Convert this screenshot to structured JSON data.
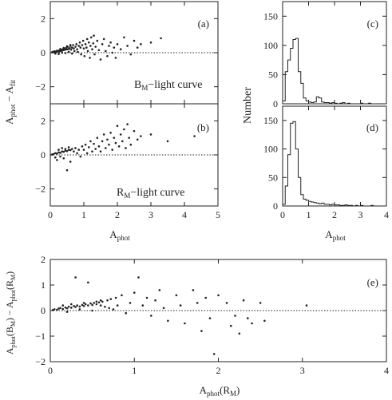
{
  "figure": {
    "background": "#ffffff",
    "ink": "#222222"
  },
  "chart_data": [
    {
      "id": "a",
      "type": "scatter",
      "panel_label": "(a)",
      "annotation_main": "B",
      "annotation_sub": "M",
      "annotation_rest": "−light curve",
      "ylabel": "A",
      "ylabel_sub": "phot",
      "ylabel_rest": " − A",
      "ylabel_sub2": "fit",
      "xlim": [
        0,
        5
      ],
      "ylim": [
        -3,
        3
      ],
      "xticks": [
        0,
        1,
        2,
        3,
        4,
        5
      ],
      "yticks": [
        -2,
        0,
        2
      ],
      "ytick_labels": [
        "−2",
        "0",
        "2"
      ],
      "reference_line": 0,
      "points": [
        [
          0.05,
          0.02
        ],
        [
          0.08,
          0.05
        ],
        [
          0.1,
          0.03
        ],
        [
          0.12,
          0.08
        ],
        [
          0.15,
          0.05
        ],
        [
          0.18,
          0.1
        ],
        [
          0.2,
          0.07
        ],
        [
          0.22,
          0.12
        ],
        [
          0.25,
          0.06
        ],
        [
          0.28,
          0.14
        ],
        [
          0.3,
          0.1
        ],
        [
          0.32,
          0.18
        ],
        [
          0.35,
          0.12
        ],
        [
          0.38,
          0.2
        ],
        [
          0.4,
          0.15
        ],
        [
          0.42,
          0.25
        ],
        [
          0.45,
          0.18
        ],
        [
          0.48,
          0.3
        ],
        [
          0.5,
          0.2
        ],
        [
          0.52,
          0.35
        ],
        [
          0.55,
          0.22
        ],
        [
          0.58,
          0.28
        ],
        [
          0.6,
          0.4
        ],
        [
          0.62,
          0.18
        ],
        [
          0.65,
          0.3
        ],
        [
          0.68,
          0.45
        ],
        [
          0.7,
          0.25
        ],
        [
          0.72,
          0.1
        ],
        [
          0.75,
          0.35
        ],
        [
          0.78,
          0.5
        ],
        [
          0.8,
          0.2
        ],
        [
          0.82,
          0.05
        ],
        [
          0.85,
          0.4
        ],
        [
          0.88,
          0.6
        ],
        [
          0.9,
          0.3
        ],
        [
          0.92,
          -0.1
        ],
        [
          0.95,
          0.45
        ],
        [
          0.98,
          0.7
        ],
        [
          1.0,
          0.25
        ],
        [
          1.02,
          -0.2
        ],
        [
          1.05,
          0.5
        ],
        [
          1.08,
          0.3
        ],
        [
          1.1,
          0.8
        ],
        [
          1.12,
          0.1
        ],
        [
          1.15,
          0.6
        ],
        [
          1.18,
          -0.3
        ],
        [
          1.2,
          0.4
        ],
        [
          1.22,
          0.9
        ],
        [
          1.25,
          0.2
        ],
        [
          1.28,
          0.55
        ],
        [
          1.3,
          1.0
        ],
        [
          1.32,
          -0.1
        ],
        [
          1.35,
          0.35
        ],
        [
          1.4,
          0.7
        ],
        [
          1.45,
          0.15
        ],
        [
          1.5,
          -0.4
        ],
        [
          1.55,
          0.5
        ],
        [
          1.6,
          0.8
        ],
        [
          1.65,
          0.1
        ],
        [
          1.7,
          -0.2
        ],
        [
          1.75,
          0.4
        ],
        [
          1.8,
          0.6
        ],
        [
          1.85,
          0.0
        ],
        [
          1.9,
          0.3
        ],
        [
          1.95,
          -0.3
        ],
        [
          2.0,
          0.5
        ],
        [
          2.1,
          0.2
        ],
        [
          2.2,
          0.9
        ],
        [
          2.3,
          0.4
        ],
        [
          2.4,
          -0.1
        ],
        [
          2.5,
          0.7
        ],
        [
          2.6,
          0.3
        ],
        [
          2.7,
          0.5
        ],
        [
          3.0,
          0.6
        ],
        [
          3.3,
          0.85
        ],
        [
          0.15,
          -0.05
        ],
        [
          0.25,
          -0.08
        ],
        [
          0.35,
          0.0
        ],
        [
          0.45,
          -0.02
        ],
        [
          0.55,
          0.05
        ],
        [
          0.65,
          -0.05
        ],
        [
          0.3,
          0.22
        ],
        [
          0.4,
          0.28
        ],
        [
          0.5,
          0.38
        ],
        [
          0.6,
          0.45
        ]
      ]
    },
    {
      "id": "b",
      "type": "scatter",
      "panel_label": "(b)",
      "annotation_main": "R",
      "annotation_sub": "M",
      "annotation_rest": "−light curve",
      "xlabel": "A",
      "xlabel_sub": "phot",
      "xlim": [
        0,
        5
      ],
      "ylim": [
        -3,
        3
      ],
      "xticks": [
        0,
        1,
        2,
        3,
        4,
        5
      ],
      "xtick_labels": [
        "0",
        "1",
        "2",
        "3",
        "4",
        "5"
      ],
      "yticks": [
        -2,
        0,
        2
      ],
      "ytick_labels": [
        "−2",
        "0",
        "2"
      ],
      "reference_line": 0,
      "points": [
        [
          0.05,
          0.02
        ],
        [
          0.1,
          0.05
        ],
        [
          0.15,
          0.1
        ],
        [
          0.2,
          0.08
        ],
        [
          0.25,
          0.15
        ],
        [
          0.3,
          0.12
        ],
        [
          0.35,
          0.2
        ],
        [
          0.4,
          0.18
        ],
        [
          0.45,
          0.25
        ],
        [
          0.5,
          0.22
        ],
        [
          0.55,
          0.3
        ],
        [
          0.6,
          0.28
        ],
        [
          0.65,
          0.35
        ],
        [
          0.7,
          0.2
        ],
        [
          0.75,
          0.4
        ],
        [
          0.8,
          0.1
        ],
        [
          0.85,
          0.3
        ],
        [
          0.9,
          -0.1
        ],
        [
          0.95,
          0.5
        ],
        [
          1.0,
          0.3
        ],
        [
          1.05,
          0.6
        ],
        [
          1.1,
          0.1
        ],
        [
          1.15,
          0.45
        ],
        [
          1.2,
          0.8
        ],
        [
          1.25,
          0.2
        ],
        [
          1.3,
          0.65
        ],
        [
          1.35,
          0.35
        ],
        [
          1.4,
          1.0
        ],
        [
          1.45,
          0.5
        ],
        [
          1.5,
          0.2
        ],
        [
          1.55,
          0.8
        ],
        [
          1.6,
          1.2
        ],
        [
          1.65,
          0.4
        ],
        [
          1.7,
          0.9
        ],
        [
          1.75,
          0.6
        ],
        [
          1.8,
          1.3
        ],
        [
          1.85,
          0.3
        ],
        [
          1.9,
          1.0
        ],
        [
          1.95,
          0.7
        ],
        [
          2.0,
          1.7
        ],
        [
          2.05,
          0.5
        ],
        [
          2.1,
          1.2
        ],
        [
          2.15,
          0.8
        ],
        [
          2.2,
          1.5
        ],
        [
          2.25,
          0.4
        ],
        [
          2.3,
          1.8
        ],
        [
          2.35,
          1.0
        ],
        [
          2.4,
          0.6
        ],
        [
          2.5,
          1.4
        ],
        [
          2.6,
          0.9
        ],
        [
          2.7,
          1.1
        ],
        [
          3.0,
          1.2
        ],
        [
          3.5,
          0.8
        ],
        [
          4.3,
          1.1
        ],
        [
          0.2,
          -0.3
        ],
        [
          0.4,
          -0.2
        ],
        [
          0.6,
          -0.4
        ],
        [
          0.5,
          -0.9
        ],
        [
          0.3,
          -0.1
        ],
        [
          0.15,
          -0.15
        ],
        [
          0.25,
          0.3
        ],
        [
          0.35,
          0.4
        ],
        [
          0.45,
          0.35
        ],
        [
          0.55,
          0.45
        ]
      ]
    },
    {
      "id": "c",
      "type": "histogram",
      "panel_label": "(c)",
      "ylabel": "Number",
      "xlim": [
        0,
        4
      ],
      "ylim": [
        0,
        175
      ],
      "xticks": [
        0,
        1,
        2,
        3,
        4
      ],
      "yticks": [
        0,
        50,
        100,
        150
      ],
      "ytick_labels": [
        "0",
        "50",
        "100",
        "150"
      ],
      "bin_edges": [
        0.0,
        0.1,
        0.2,
        0.3,
        0.4,
        0.5,
        0.6,
        0.7,
        0.8,
        0.9,
        1.0,
        1.1,
        1.2,
        1.3,
        1.4,
        1.5,
        1.6,
        1.7,
        1.8,
        1.9,
        2.0,
        2.1,
        2.2,
        2.3,
        2.4,
        2.5,
        2.6,
        2.7,
        2.8,
        2.9,
        3.0,
        3.1,
        3.2,
        3.3,
        3.4,
        3.5
      ],
      "counts": [
        5,
        55,
        75,
        95,
        110,
        112,
        55,
        35,
        10,
        5,
        3,
        2,
        3,
        12,
        10,
        3,
        2,
        2,
        1,
        2,
        1,
        0,
        1,
        2,
        0,
        1,
        0,
        0,
        0,
        0,
        1,
        0,
        0,
        1,
        0
      ]
    },
    {
      "id": "d",
      "type": "histogram",
      "panel_label": "(d)",
      "ylabel": "Number",
      "xlabel": "A",
      "xlabel_sub": "phot",
      "xlim": [
        0,
        4
      ],
      "ylim": [
        0,
        175
      ],
      "xticks": [
        0,
        1,
        2,
        3,
        4
      ],
      "xtick_labels": [
        "0",
        "1",
        "2",
        "3",
        "4"
      ],
      "yticks": [
        0,
        50,
        100,
        150
      ],
      "ytick_labels": [
        "0",
        "50",
        "100",
        "150"
      ],
      "bin_edges": [
        0.0,
        0.1,
        0.2,
        0.3,
        0.4,
        0.5,
        0.6,
        0.7,
        0.8,
        0.9,
        1.0,
        1.1,
        1.2,
        1.3,
        1.4,
        1.5,
        1.6,
        1.7,
        1.8,
        1.9,
        2.0,
        2.1,
        2.2,
        2.3,
        2.4,
        2.5,
        2.6,
        2.7,
        2.8,
        2.9,
        3.0,
        3.1,
        3.2,
        3.3,
        3.4,
        3.5
      ],
      "counts": [
        3,
        35,
        90,
        145,
        148,
        100,
        50,
        20,
        12,
        10,
        8,
        7,
        6,
        5,
        4,
        5,
        3,
        3,
        2,
        3,
        2,
        2,
        1,
        1,
        2,
        1,
        1,
        0,
        1,
        0,
        1,
        0,
        0,
        0,
        1
      ]
    },
    {
      "id": "e",
      "type": "scatter",
      "panel_label": "(e)",
      "ylabel": "A",
      "ylabel_sub": "phot",
      "ylabel_rest": "(B",
      "ylabel_sub2": "M",
      "ylabel_rest2": ") − A",
      "ylabel_sub3": "phot",
      "ylabel_rest3": "(R",
      "ylabel_sub4": "M",
      "ylabel_rest4": ")",
      "xlabel": "A",
      "xlabel_sub": "phot",
      "xlabel_rest": "(R",
      "xlabel_sub2": "M",
      "xlabel_rest2": ")",
      "xlim": [
        0,
        4
      ],
      "ylim": [
        -2,
        2
      ],
      "xticks": [
        0,
        1,
        2,
        3,
        4
      ],
      "xtick_labels": [
        "0",
        "1",
        "2",
        "3",
        "4"
      ],
      "yticks": [
        -2,
        -1,
        0,
        1,
        2
      ],
      "ytick_labels": [
        "−2",
        "−1",
        "0",
        "1",
        "2"
      ],
      "reference_line": 0,
      "points": [
        [
          0.03,
          0.02
        ],
        [
          0.05,
          0.05
        ],
        [
          0.08,
          0.03
        ],
        [
          0.1,
          0.08
        ],
        [
          0.12,
          0.1
        ],
        [
          0.15,
          0.06
        ],
        [
          0.18,
          0.12
        ],
        [
          0.2,
          0.09
        ],
        [
          0.22,
          0.15
        ],
        [
          0.25,
          0.11
        ],
        [
          0.28,
          0.18
        ],
        [
          0.3,
          0.14
        ],
        [
          0.32,
          0.2
        ],
        [
          0.35,
          0.16
        ],
        [
          0.38,
          0.22
        ],
        [
          0.4,
          0.18
        ],
        [
          0.42,
          0.25
        ],
        [
          0.45,
          0.2
        ],
        [
          0.48,
          0.28
        ],
        [
          0.5,
          0.22
        ],
        [
          0.52,
          0.3
        ],
        [
          0.55,
          0.25
        ],
        [
          0.58,
          0.32
        ],
        [
          0.6,
          0.2
        ],
        [
          0.62,
          0.35
        ],
        [
          0.65,
          0.15
        ],
        [
          0.68,
          0.4
        ],
        [
          0.7,
          0.1
        ],
        [
          0.72,
          0.45
        ],
        [
          0.75,
          0.05
        ],
        [
          0.78,
          0.5
        ],
        [
          0.8,
          0.2
        ],
        [
          0.85,
          0.6
        ],
        [
          0.9,
          -0.1
        ],
        [
          0.95,
          0.3
        ],
        [
          1.0,
          0.7
        ],
        [
          1.05,
          1.3
        ],
        [
          1.1,
          0.2
        ],
        [
          1.15,
          0.5
        ],
        [
          1.2,
          -0.2
        ],
        [
          1.25,
          0.4
        ],
        [
          1.3,
          0.8
        ],
        [
          1.35,
          0.1
        ],
        [
          1.4,
          -0.4
        ],
        [
          1.5,
          0.6
        ],
        [
          1.55,
          0.2
        ],
        [
          1.6,
          -0.5
        ],
        [
          1.7,
          0.8
        ],
        [
          1.75,
          0.3
        ],
        [
          1.8,
          -0.8
        ],
        [
          1.85,
          0.5
        ],
        [
          1.9,
          -0.3
        ],
        [
          1.95,
          -1.7
        ],
        [
          2.0,
          0.6
        ],
        [
          2.1,
          0.3
        ],
        [
          2.15,
          -0.6
        ],
        [
          2.2,
          -0.2
        ],
        [
          2.25,
          -0.9
        ],
        [
          2.3,
          0.4
        ],
        [
          2.35,
          -0.3
        ],
        [
          2.4,
          -0.5
        ],
        [
          2.5,
          0.3
        ],
        [
          2.55,
          -0.4
        ],
        [
          3.05,
          0.2
        ],
        [
          0.3,
          1.3
        ],
        [
          0.45,
          1.1
        ],
        [
          0.2,
          -0.05
        ],
        [
          0.35,
          0.05
        ],
        [
          0.5,
          0.0
        ],
        [
          0.15,
          0.2
        ],
        [
          0.25,
          0.25
        ],
        [
          0.4,
          0.3
        ],
        [
          0.55,
          0.35
        ],
        [
          0.6,
          0.4
        ]
      ]
    }
  ]
}
